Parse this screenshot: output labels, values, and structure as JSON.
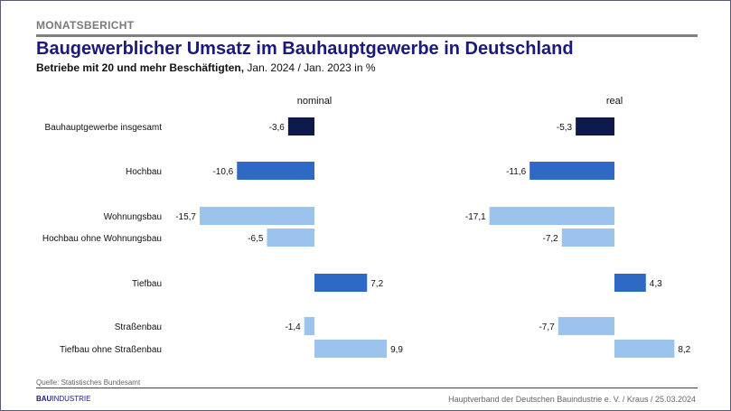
{
  "header": {
    "kicker": "MONATSBERICHT",
    "title": "Baugewerblicher Umsatz im Bauhauptgewerbe in Deutschland",
    "subtitle_bold": "Betriebe mit 20 und mehr Beschäftigten,",
    "subtitle_rest": " Jan. 2024 / Jan. 2023 in %"
  },
  "chart_data": {
    "type": "bar",
    "orientation": "horizontal",
    "categories": [
      "Bauhauptgewerbe insgesamt",
      "Hochbau",
      "Wohnungsbau",
      "Hochbau ohne Wohnungsbau",
      "Tiefbau",
      "Straßenbau",
      "Tiefbau ohne Straßenbau"
    ],
    "series": [
      {
        "name": "nominal",
        "values": [
          -3.6,
          -10.6,
          -15.7,
          -6.5,
          7.2,
          -1.4,
          9.9
        ],
        "labels": [
          "-3,6",
          "-10,6",
          "-15,7",
          "-6,5",
          "7,2",
          "-1,4",
          "9,9"
        ]
      },
      {
        "name": "real",
        "values": [
          -5.3,
          -11.6,
          -17.1,
          -7.2,
          4.3,
          -7.7,
          8.2
        ],
        "labels": [
          "-5,3",
          "-11,6",
          "-17,1",
          "-7,2",
          "4,3",
          "-7,7",
          "8,2"
        ]
      }
    ],
    "category_colors": [
      "#0d1a4a",
      "#2f69c6",
      "#9bc3ec",
      "#9bc3ec",
      "#2f69c6",
      "#9bc3ec",
      "#9bc3ec"
    ],
    "grid": false
  },
  "footer": {
    "source": "Quelle: Statistisches Bundesamt",
    "logo_bold": "BAU",
    "logo_rest": "INDUSTRIE",
    "credit": "Hauptverband  der Deutschen Bauindustrie e. V. / Kraus / 25.03.2024"
  }
}
